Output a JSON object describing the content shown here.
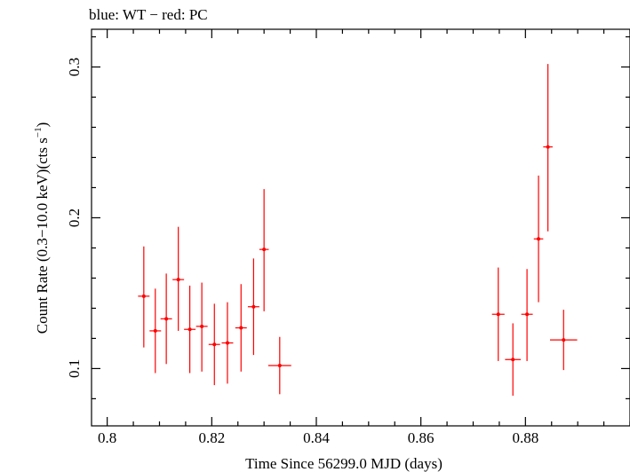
{
  "chart_data": {
    "type": "scatter",
    "title": "blue: WT − red: PC",
    "xlabel": "Time Since 56299.0 MJD (days)",
    "ylabel_parts": {
      "main": "Count Rate (0.3−10.0 keV)(cts s",
      "sup": "−1",
      "close": ")"
    },
    "xlim": [
      0.797,
      0.9
    ],
    "ylim": [
      0.062,
      0.325
    ],
    "x_ticks": [
      {
        "value": 0.8,
        "label": "0.8"
      },
      {
        "value": 0.82,
        "label": "0.82"
      },
      {
        "value": 0.84,
        "label": "0.84"
      },
      {
        "value": 0.86,
        "label": "0.86"
      },
      {
        "value": 0.88,
        "label": "0.88"
      }
    ],
    "x_minor_step": 0.005,
    "y_ticks": [
      {
        "value": 0.1,
        "label": "0.1"
      },
      {
        "value": 0.2,
        "label": "0.2"
      },
      {
        "value": 0.3,
        "label": "0.3"
      }
    ],
    "y_minor_step": 0.02,
    "grid": false,
    "colors": {
      "PC": "#ff0000",
      "WT": "#0000ff",
      "axes": "#000000"
    },
    "series": [
      {
        "name": "PC",
        "color": "#ff0000",
        "points": [
          {
            "x": 0.807,
            "xerr": 0.0011,
            "y": 0.148,
            "ylo": 0.114,
            "yhi": 0.181
          },
          {
            "x": 0.8092,
            "xerr": 0.0011,
            "y": 0.125,
            "ylo": 0.097,
            "yhi": 0.153
          },
          {
            "x": 0.8113,
            "xerr": 0.0011,
            "y": 0.133,
            "ylo": 0.103,
            "yhi": 0.163
          },
          {
            "x": 0.8136,
            "xerr": 0.0011,
            "y": 0.159,
            "ylo": 0.125,
            "yhi": 0.194
          },
          {
            "x": 0.8158,
            "xerr": 0.0011,
            "y": 0.126,
            "ylo": 0.097,
            "yhi": 0.155
          },
          {
            "x": 0.8181,
            "xerr": 0.0011,
            "y": 0.128,
            "ylo": 0.098,
            "yhi": 0.157
          },
          {
            "x": 0.8205,
            "xerr": 0.0011,
            "y": 0.116,
            "ylo": 0.089,
            "yhi": 0.143
          },
          {
            "x": 0.823,
            "xerr": 0.0011,
            "y": 0.117,
            "ylo": 0.09,
            "yhi": 0.144
          },
          {
            "x": 0.8256,
            "xerr": 0.0011,
            "y": 0.127,
            "ylo": 0.098,
            "yhi": 0.156
          },
          {
            "x": 0.828,
            "xerr": 0.0011,
            "y": 0.141,
            "ylo": 0.109,
            "yhi": 0.173
          },
          {
            "x": 0.83,
            "xerr": 0.0009,
            "y": 0.179,
            "ylo": 0.138,
            "yhi": 0.219
          },
          {
            "x": 0.833,
            "xerr": 0.0022,
            "y": 0.102,
            "ylo": 0.083,
            "yhi": 0.121
          },
          {
            "x": 0.8748,
            "xerr": 0.0012,
            "y": 0.136,
            "ylo": 0.105,
            "yhi": 0.167
          },
          {
            "x": 0.8776,
            "xerr": 0.0015,
            "y": 0.106,
            "ylo": 0.082,
            "yhi": 0.13
          },
          {
            "x": 0.8803,
            "xerr": 0.0011,
            "y": 0.136,
            "ylo": 0.105,
            "yhi": 0.166
          },
          {
            "x": 0.8825,
            "xerr": 0.0009,
            "y": 0.186,
            "ylo": 0.144,
            "yhi": 0.228
          },
          {
            "x": 0.8843,
            "xerr": 0.0009,
            "y": 0.247,
            "ylo": 0.191,
            "yhi": 0.302
          },
          {
            "x": 0.8873,
            "xerr": 0.0026,
            "y": 0.119,
            "ylo": 0.099,
            "yhi": 0.139
          }
        ]
      }
    ]
  }
}
